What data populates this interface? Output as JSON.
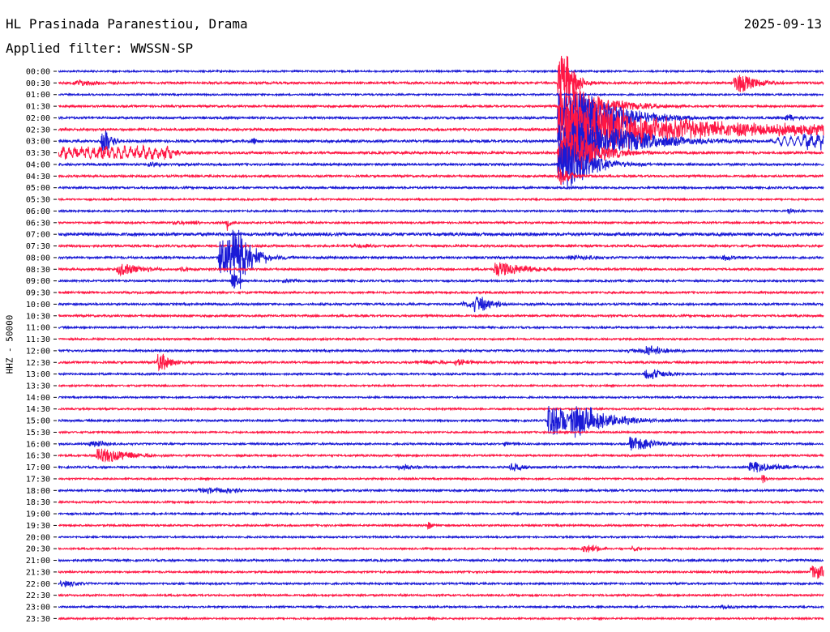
{
  "header": {
    "station": "HL Prasinada Paranestiou, Drama",
    "date": "2025-09-13",
    "filter": "Applied filter: WWSSN-SP"
  },
  "chart_data": {
    "type": "line",
    "title": "HL Prasinada Paranestiou, Drama",
    "ylabel": "HHZ - 50000",
    "colors": [
      "#1a1ad6",
      "#ff1744"
    ],
    "row_labels": [
      "00:00",
      "00:30",
      "01:00",
      "01:30",
      "02:00",
      "02:30",
      "03:00",
      "03:30",
      "04:00",
      "04:30",
      "05:00",
      "05:30",
      "06:00",
      "06:30",
      "07:00",
      "07:30",
      "08:00",
      "08:30",
      "09:00",
      "09:30",
      "10:00",
      "10:30",
      "11:00",
      "11:30",
      "12:00",
      "12:30",
      "13:00",
      "13:30",
      "14:00",
      "14:30",
      "15:00",
      "15:30",
      "16:00",
      "16:30",
      "17:00",
      "17:30",
      "18:00",
      "18:30",
      "19:00",
      "19:30",
      "20:00",
      "20:30",
      "21:00",
      "21:30",
      "22:00",
      "22:30",
      "23:00",
      "23:30"
    ],
    "x_unit": "minutes within 30-minute row",
    "x_range": [
      0,
      30
    ],
    "noise_level": [
      1,
      1.3,
      1,
      1.2,
      1.3,
      1.4,
      1.4,
      1.4,
      1.3,
      1.2,
      1.2,
      1,
      1.1,
      1.1,
      1.8,
      1.3,
      1.3,
      1.2,
      1.1,
      1.2,
      1.2,
      1.2,
      1.1,
      1.1,
      1.2,
      1.2,
      1.1,
      1,
      1,
      1,
      1.2,
      1,
      1.1,
      1.1,
      1.2,
      1,
      1.2,
      1.1,
      1.1,
      1.1,
      1,
      1,
      1.2,
      1.1,
      1.1,
      1.1,
      1,
      1
    ],
    "events": [
      {
        "row": 1,
        "t": 19.6,
        "amp": 36,
        "dur": 0.4,
        "decay": 0.3
      },
      {
        "row": 1,
        "t": 26.5,
        "amp": 12,
        "dur": 0.3,
        "decay": 0.6
      },
      {
        "row": 1,
        "t": 0.6,
        "amp": 4,
        "dur": 0.2,
        "decay": 0.8
      },
      {
        "row": 3,
        "t": 19.6,
        "amp": 26,
        "dur": 0.8,
        "decay": 1.2
      },
      {
        "row": 4,
        "t": 19.6,
        "amp": 30,
        "dur": 1.2,
        "decay": 1.5
      },
      {
        "row": 4,
        "t": 28.5,
        "amp": 3,
        "dur": 0.2,
        "decay": 0.5
      },
      {
        "row": 5,
        "t": 19.6,
        "amp": 34,
        "dur": 1.5,
        "decay": 2.5
      },
      {
        "row": 5,
        "t": 21.5,
        "amp": 6,
        "dur": 9,
        "decay": 4
      },
      {
        "row": 6,
        "t": 1.7,
        "amp": 18,
        "dur": 0.1,
        "decay": 0.3
      },
      {
        "row": 6,
        "t": 19.6,
        "amp": 28,
        "dur": 1.2,
        "decay": 2.0
      },
      {
        "row": 6,
        "t": 29.2,
        "amp": 6,
        "dur": 1.5,
        "decay": 0.3
      },
      {
        "row": 6,
        "t": 7.6,
        "amp": 6,
        "dur": 0.05,
        "decay": 0.1
      },
      {
        "row": 7,
        "t": 0.1,
        "amp": 5,
        "dur": 4.2,
        "decay": 0.5
      },
      {
        "row": 7,
        "t": 1.7,
        "amp": 10,
        "dur": 0.05,
        "decay": 0.1
      },
      {
        "row": 7,
        "t": 19.6,
        "amp": 24,
        "dur": 0.8,
        "decay": 1.0
      },
      {
        "row": 8,
        "t": 19.6,
        "amp": 30,
        "dur": 0.6,
        "decay": 0.8
      },
      {
        "row": 8,
        "t": 3.5,
        "amp": 3,
        "dur": 0.2,
        "decay": 0.3
      },
      {
        "row": 9,
        "t": 19.6,
        "amp": 12,
        "dur": 0.2,
        "decay": 0.3
      },
      {
        "row": 12,
        "t": 28.6,
        "amp": 3,
        "dur": 0.1,
        "decay": 0.2
      },
      {
        "row": 13,
        "t": 4.5,
        "amp": 2,
        "dur": 1.0,
        "decay": 0.3
      },
      {
        "row": 13,
        "t": 6.6,
        "amp": 10,
        "dur": 0.05,
        "decay": 0.1
      },
      {
        "row": 15,
        "t": 11.5,
        "amp": 2,
        "dur": 0.5,
        "decay": 0.3
      },
      {
        "row": 16,
        "t": 6.3,
        "amp": 22,
        "dur": 0.6,
        "decay": 0.5
      },
      {
        "row": 16,
        "t": 6.8,
        "amp": 26,
        "dur": 0.3,
        "decay": 0.6
      },
      {
        "row": 16,
        "t": 20.0,
        "amp": 2,
        "dur": 1.0,
        "decay": 0.5
      },
      {
        "row": 16,
        "t": 26.0,
        "amp": 3,
        "dur": 0.3,
        "decay": 0.3
      },
      {
        "row": 17,
        "t": 2.3,
        "amp": 7,
        "dur": 0.3,
        "decay": 0.8
      },
      {
        "row": 17,
        "t": 4.8,
        "amp": 4,
        "dur": 0.1,
        "decay": 0.2
      },
      {
        "row": 17,
        "t": 17.1,
        "amp": 9,
        "dur": 0.2,
        "decay": 1.2
      },
      {
        "row": 18,
        "t": 6.8,
        "amp": 10,
        "dur": 0.1,
        "decay": 0.2
      },
      {
        "row": 18,
        "t": 8.8,
        "amp": 2,
        "dur": 0.5,
        "decay": 0.3
      },
      {
        "row": 20,
        "t": 16.3,
        "amp": 10,
        "dur": 0.2,
        "decay": 0.3
      },
      {
        "row": 20,
        "t": 15.8,
        "amp": 3,
        "dur": 1.5,
        "decay": 0.3
      },
      {
        "row": 24,
        "t": 23.0,
        "amp": 5,
        "dur": 0.3,
        "decay": 0.5
      },
      {
        "row": 24,
        "t": 22.3,
        "amp": 2,
        "dur": 2.0,
        "decay": 0.5
      },
      {
        "row": 25,
        "t": 3.9,
        "amp": 10,
        "dur": 0.2,
        "decay": 0.4
      },
      {
        "row": 25,
        "t": 15.5,
        "amp": 4,
        "dur": 0.3,
        "decay": 0.5
      },
      {
        "row": 25,
        "t": 14.0,
        "amp": 2,
        "dur": 1.0,
        "decay": 0.3
      },
      {
        "row": 26,
        "t": 23.0,
        "amp": 6,
        "dur": 0.3,
        "decay": 0.6
      },
      {
        "row": 30,
        "t": 19.2,
        "amp": 18,
        "dur": 0.4,
        "decay": 0.8
      },
      {
        "row": 30,
        "t": 20.1,
        "amp": 16,
        "dur": 0.5,
        "decay": 1.2
      },
      {
        "row": 32,
        "t": 22.4,
        "amp": 8,
        "dur": 0.3,
        "decay": 0.8
      },
      {
        "row": 32,
        "t": 1.2,
        "amp": 3,
        "dur": 0.5,
        "decay": 0.5
      },
      {
        "row": 32,
        "t": 17.5,
        "amp": 2,
        "dur": 0.1,
        "decay": 0.2
      },
      {
        "row": 33,
        "t": 1.5,
        "amp": 8,
        "dur": 0.5,
        "decay": 1.0
      },
      {
        "row": 34,
        "t": 13.3,
        "amp": 3,
        "dur": 0.3,
        "decay": 0.5
      },
      {
        "row": 34,
        "t": 17.7,
        "amp": 4,
        "dur": 0.2,
        "decay": 0.4
      },
      {
        "row": 34,
        "t": 27.1,
        "amp": 6,
        "dur": 0.3,
        "decay": 1.0
      },
      {
        "row": 35,
        "t": 27.6,
        "amp": 6,
        "dur": 0.05,
        "decay": 0.1
      },
      {
        "row": 36,
        "t": 5.5,
        "amp": 3,
        "dur": 1.5,
        "decay": 0.3
      },
      {
        "row": 36,
        "t": 3.0,
        "amp": 2,
        "dur": 0.1,
        "decay": 0.2
      },
      {
        "row": 39,
        "t": 14.5,
        "amp": 7,
        "dur": 0.05,
        "decay": 0.1
      },
      {
        "row": 41,
        "t": 20.5,
        "amp": 4,
        "dur": 0.5,
        "decay": 0.4
      },
      {
        "row": 41,
        "t": 22.5,
        "amp": 3,
        "dur": 0.1,
        "decay": 0.2
      },
      {
        "row": 43,
        "t": 29.5,
        "amp": 8,
        "dur": 1.3,
        "decay": 0.3
      },
      {
        "row": 44,
        "t": 0.1,
        "amp": 4,
        "dur": 0.3,
        "decay": 0.4
      },
      {
        "row": 47,
        "t": 14.5,
        "amp": 2,
        "dur": 0.1,
        "decay": 0.2
      },
      {
        "row": 46,
        "t": 26.0,
        "amp": 2,
        "dur": 0.5,
        "decay": 0.3
      }
    ]
  }
}
